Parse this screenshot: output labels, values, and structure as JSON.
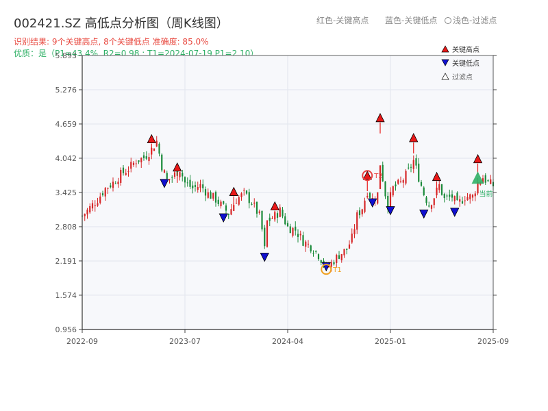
{
  "chart_data": {
    "type": "candlestick",
    "title": "002421.SZ 高低点分析图（周K线图）",
    "subtitle_result": "识别结果: 9个关键高点, 8个关键低点  准确度: 85.0%",
    "subtitle_quality": "优质：是（P1=43.4%, R2=0.98 ; T1=2024-07-19 P1=2.10）",
    "top_legend": {
      "red_text": "红色-关键高点",
      "blue_text": "蓝色-关键低点",
      "hollow_text": "浅色-过滤点"
    },
    "legend": {
      "high_label": "关键高点",
      "low_label": "关键低点",
      "filtered_label": "过滤点"
    },
    "yticks": [
      "0.956",
      "1.574",
      "2.191",
      "2.808",
      "3.425",
      "4.042",
      "4.659",
      "5.276",
      "5.893"
    ],
    "ylim": [
      0.956,
      5.893
    ],
    "xticks": [
      "2022-09",
      "2023-07",
      "2024-04",
      "2025-01",
      "2025-09"
    ],
    "xtick_positions": [
      0,
      40,
      80,
      120,
      160
    ],
    "xlim": [
      0,
      160
    ],
    "annotations": {
      "t1_label": "T1",
      "t2_label": "T2",
      "current_label": "当前"
    },
    "colors": {
      "up": "#d62728",
      "down": "#1a8a3a",
      "high_marker": "#e81818",
      "low_marker": "#1010d0",
      "t1_circle": "#f0a020",
      "t2_circle": "#e84040",
      "current_marker": "#2fb066"
    },
    "close_anchors": [
      [
        0,
        3.0
      ],
      [
        3,
        3.15
      ],
      [
        6,
        3.3
      ],
      [
        9,
        3.5
      ],
      [
        12,
        3.6
      ],
      [
        15,
        3.75
      ],
      [
        18,
        3.85
      ],
      [
        21,
        4.0
      ],
      [
        24,
        4.05
      ],
      [
        27,
        4.2
      ],
      [
        29,
        4.35
      ],
      [
        31,
        3.9
      ],
      [
        33,
        3.65
      ],
      [
        35,
        3.7
      ],
      [
        37,
        3.8
      ],
      [
        38,
        3.85
      ],
      [
        40,
        3.6
      ],
      [
        43,
        3.5
      ],
      [
        46,
        3.55
      ],
      [
        49,
        3.4
      ],
      [
        52,
        3.3
      ],
      [
        55,
        3.15
      ],
      [
        57,
        3.05
      ],
      [
        60,
        3.3
      ],
      [
        63,
        3.4
      ],
      [
        66,
        3.25
      ],
      [
        69,
        3.0
      ],
      [
        70,
        2.75
      ],
      [
        71,
        2.4
      ],
      [
        72,
        2.9
      ],
      [
        75,
        3.0
      ],
      [
        77,
        3.1
      ],
      [
        80,
        2.8
      ],
      [
        83,
        2.75
      ],
      [
        86,
        2.55
      ],
      [
        89,
        2.45
      ],
      [
        92,
        2.3
      ],
      [
        94,
        2.15
      ],
      [
        95,
        2.05
      ],
      [
        97,
        2.15
      ],
      [
        100,
        2.3
      ],
      [
        103,
        2.4
      ],
      [
        105,
        2.6
      ],
      [
        107,
        3.0
      ],
      [
        109,
        3.15
      ],
      [
        111,
        3.45
      ],
      [
        113,
        3.3
      ],
      [
        115,
        3.4
      ],
      [
        116,
        3.95
      ],
      [
        118,
        3.4
      ],
      [
        119,
        3.2
      ],
      [
        121,
        3.5
      ],
      [
        124,
        3.6
      ],
      [
        127,
        3.8
      ],
      [
        129,
        4.0
      ],
      [
        131,
        3.7
      ],
      [
        133,
        3.4
      ],
      [
        135,
        3.2
      ],
      [
        137,
        3.35
      ],
      [
        139,
        3.55
      ],
      [
        141,
        3.3
      ],
      [
        144,
        3.35
      ],
      [
        146,
        3.2
      ],
      [
        149,
        3.35
      ],
      [
        152,
        3.35
      ],
      [
        154,
        3.6
      ],
      [
        156,
        3.7
      ],
      [
        158,
        3.6
      ],
      [
        160,
        3.55
      ]
    ],
    "high_points": [
      {
        "x": 27,
        "price": 4.38
      },
      {
        "x": 37,
        "price": 3.87
      },
      {
        "x": 59,
        "price": 3.43
      },
      {
        "x": 75,
        "price": 3.17
      },
      {
        "x": 111,
        "price": 3.72
      },
      {
        "x": 116,
        "price": 4.76
      },
      {
        "x": 129,
        "price": 4.4
      },
      {
        "x": 138,
        "price": 3.7
      },
      {
        "x": 154,
        "price": 4.02
      }
    ],
    "low_points": [
      {
        "x": 32,
        "price": 3.6
      },
      {
        "x": 55,
        "price": 2.98
      },
      {
        "x": 71,
        "price": 2.27
      },
      {
        "x": 95,
        "price": 2.1
      },
      {
        "x": 113,
        "price": 3.25
      },
      {
        "x": 120,
        "price": 3.11
      },
      {
        "x": 133,
        "price": 3.05
      },
      {
        "x": 145,
        "price": 3.08
      }
    ],
    "t1": {
      "x": 95,
      "price": 2.04
    },
    "t2": {
      "x": 111,
      "price": 3.73
    },
    "current": {
      "x": 154,
      "price": 3.68
    }
  }
}
